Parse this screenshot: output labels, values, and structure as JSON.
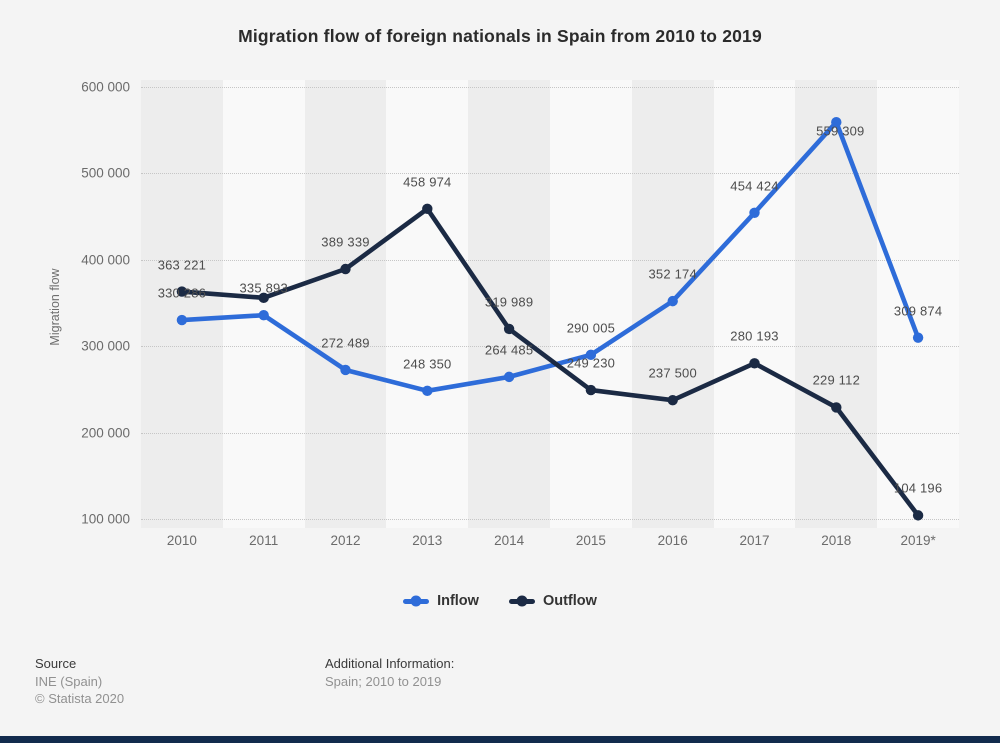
{
  "page": {
    "footer": {
      "source_label": "Source",
      "source_name": "INE (Spain)",
      "copyright": "© Statista 2020",
      "additional_label": "Additional Information:",
      "additional_value": "Spain; 2010 to 2019"
    },
    "colors": {
      "bottom_bar": "#122b4d",
      "page_background": "#f4f4f4",
      "band_dark": "#ededed",
      "band_light": "#f9f9f9"
    }
  },
  "chart_data": {
    "type": "line",
    "title": "Migration flow of foreign nationals in Spain from 2010 to 2019",
    "xlabel": "",
    "ylabel": "Migration flow",
    "x_categories": [
      "2010",
      "2011",
      "2012",
      "2013",
      "2014",
      "2015",
      "2016",
      "2017",
      "2018",
      "2019*"
    ],
    "ylim": [
      100000,
      600000
    ],
    "y_ticks": [
      600000,
      500000,
      400000,
      300000,
      200000,
      100000
    ],
    "y_tick_labels": [
      "600 000",
      "500 000",
      "400 000",
      "300 000",
      "200 000",
      "100 000"
    ],
    "grid": "horizontal-dotted",
    "background_bands": "alternating-vertical",
    "legend_position": "bottom",
    "series": [
      {
        "name": "Inflow",
        "color": "#2e6cd9",
        "values": [
          330286,
          335893,
          272489,
          248350,
          264485,
          290005,
          352174,
          454424,
          559309,
          309874
        ],
        "point_labels": [
          "330 286",
          "335 893",
          "272 489",
          "248 350",
          "264 485",
          "290 005",
          "352 174",
          "454 424",
          "559 309",
          "309 874"
        ]
      },
      {
        "name": "Outflow",
        "color": "#1b2a44",
        "values": [
          363221,
          356000,
          389339,
          458974,
          319989,
          249230,
          237500,
          280193,
          229112,
          104196
        ],
        "point_labels": [
          "363 221",
          null,
          "389 339",
          "458 974",
          "319 989",
          "249 230",
          "237 500",
          "280 193",
          "229 112",
          "104 196"
        ]
      }
    ]
  }
}
